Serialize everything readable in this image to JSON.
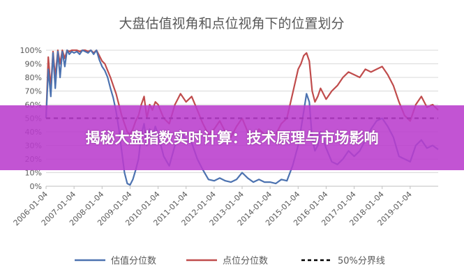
{
  "banner": {
    "headline": "揭秘大盘指数实时计算：技术原理与市场影响"
  },
  "colors": {
    "valuation": "#4c72b0",
    "point": "#c04c4c",
    "threshold": "#000000",
    "banner": "#b93ccd"
  },
  "chart_data": {
    "type": "line",
    "title": "大盘估值视角和点位视角下的位置划分",
    "ylim": [
      0,
      1
    ],
    "yticks": [
      "0%",
      "10%",
      "20%",
      "30%",
      "40%",
      "50%",
      "60%",
      "70%",
      "80%",
      "90%",
      "100%"
    ],
    "xticks": [
      "2006-01-04",
      "2007-01-04",
      "2008-01-04",
      "2009-01-04",
      "2010-01-04",
      "2011-01-04",
      "2012-01-04",
      "2013-01-04",
      "2014-01-04",
      "2015-01-04",
      "2016-01-04",
      "2017-01-04",
      "2018-01-04",
      "2019-01-04"
    ],
    "x_range": [
      2006.0,
      2020.0
    ],
    "grid": true,
    "legend_position": "bottom",
    "series": [
      {
        "name": "估值分位数",
        "x": [
          2006.0,
          2006.08,
          2006.17,
          2006.25,
          2006.33,
          2006.42,
          2006.5,
          2006.58,
          2006.67,
          2006.75,
          2006.83,
          2006.92,
          2007.0,
          2007.1,
          2007.2,
          2007.3,
          2007.4,
          2007.5,
          2007.6,
          2007.7,
          2007.8,
          2007.9,
          2008.0,
          2008.1,
          2008.2,
          2008.3,
          2008.4,
          2008.5,
          2008.6,
          2008.7,
          2008.8,
          2008.9,
          2009.0,
          2009.1,
          2009.2,
          2009.3,
          2009.4,
          2009.5,
          2009.6,
          2009.7,
          2009.8,
          2009.9,
          2010.0,
          2010.2,
          2010.4,
          2010.6,
          2010.8,
          2011.0,
          2011.2,
          2011.4,
          2011.6,
          2011.8,
          2012.0,
          2012.2,
          2012.4,
          2012.6,
          2012.8,
          2013.0,
          2013.2,
          2013.4,
          2013.6,
          2013.8,
          2014.0,
          2014.2,
          2014.4,
          2014.6,
          2014.8,
          2015.0,
          2015.1,
          2015.2,
          2015.3,
          2015.4,
          2015.5,
          2015.6,
          2015.7,
          2015.8,
          2015.9,
          2016.0,
          2016.2,
          2016.4,
          2016.6,
          2016.8,
          2017.0,
          2017.2,
          2017.4,
          2017.6,
          2017.8,
          2018.0,
          2018.2,
          2018.4,
          2018.6,
          2018.8,
          2019.0,
          2019.2,
          2019.4,
          2019.6,
          2019.8,
          2020.0
        ],
        "y": [
          0.5,
          0.86,
          0.66,
          0.98,
          0.72,
          0.99,
          0.8,
          0.99,
          0.88,
          1.0,
          0.97,
          0.99,
          0.98,
          0.99,
          0.97,
          1.0,
          0.99,
          0.98,
          1.0,
          0.97,
          1.0,
          0.93,
          0.88,
          0.85,
          0.8,
          0.72,
          0.65,
          0.55,
          0.42,
          0.26,
          0.1,
          0.02,
          0.01,
          0.05,
          0.12,
          0.2,
          0.38,
          0.46,
          0.3,
          0.42,
          0.36,
          0.44,
          0.38,
          0.22,
          0.15,
          0.3,
          0.4,
          0.34,
          0.32,
          0.2,
          0.12,
          0.05,
          0.04,
          0.06,
          0.04,
          0.03,
          0.05,
          0.1,
          0.06,
          0.03,
          0.05,
          0.03,
          0.03,
          0.02,
          0.05,
          0.04,
          0.15,
          0.3,
          0.42,
          0.55,
          0.68,
          0.62,
          0.35,
          0.26,
          0.3,
          0.4,
          0.34,
          0.28,
          0.18,
          0.16,
          0.2,
          0.26,
          0.22,
          0.26,
          0.34,
          0.42,
          0.48,
          0.5,
          0.44,
          0.36,
          0.22,
          0.2,
          0.18,
          0.3,
          0.34,
          0.28,
          0.3,
          0.27
        ]
      },
      {
        "name": "点位分位数",
        "x": [
          2006.0,
          2006.08,
          2006.17,
          2006.25,
          2006.33,
          2006.42,
          2006.5,
          2006.58,
          2006.67,
          2006.75,
          2006.83,
          2006.92,
          2007.0,
          2007.1,
          2007.2,
          2007.3,
          2007.4,
          2007.5,
          2007.6,
          2007.7,
          2007.8,
          2007.9,
          2008.0,
          2008.1,
          2008.2,
          2008.3,
          2008.4,
          2008.5,
          2008.6,
          2008.7,
          2008.8,
          2008.9,
          2009.0,
          2009.1,
          2009.2,
          2009.3,
          2009.4,
          2009.5,
          2009.6,
          2009.7,
          2009.8,
          2009.9,
          2010.0,
          2010.2,
          2010.4,
          2010.6,
          2010.8,
          2011.0,
          2011.2,
          2011.4,
          2011.6,
          2011.8,
          2012.0,
          2012.2,
          2012.4,
          2012.6,
          2012.8,
          2013.0,
          2013.2,
          2013.4,
          2013.6,
          2013.8,
          2014.0,
          2014.2,
          2014.4,
          2014.6,
          2014.8,
          2015.0,
          2015.1,
          2015.2,
          2015.3,
          2015.4,
          2015.5,
          2015.6,
          2015.7,
          2015.8,
          2015.9,
          2016.0,
          2016.2,
          2016.4,
          2016.6,
          2016.8,
          2017.0,
          2017.2,
          2017.4,
          2017.6,
          2017.8,
          2018.0,
          2018.2,
          2018.4,
          2018.6,
          2018.8,
          2019.0,
          2019.2,
          2019.4,
          2019.6,
          2019.8,
          2020.0
        ],
        "y": [
          0.5,
          0.95,
          0.72,
          0.99,
          0.8,
          1.0,
          0.9,
          1.0,
          0.94,
          1.0,
          0.99,
          1.0,
          1.0,
          1.0,
          0.99,
          1.0,
          1.0,
          0.99,
          1.0,
          0.98,
          1.0,
          0.96,
          0.92,
          0.9,
          0.85,
          0.8,
          0.74,
          0.68,
          0.6,
          0.52,
          0.46,
          0.4,
          0.38,
          0.42,
          0.48,
          0.52,
          0.6,
          0.66,
          0.5,
          0.6,
          0.56,
          0.62,
          0.6,
          0.5,
          0.46,
          0.6,
          0.68,
          0.62,
          0.66,
          0.56,
          0.46,
          0.38,
          0.42,
          0.48,
          0.4,
          0.36,
          0.44,
          0.5,
          0.4,
          0.36,
          0.42,
          0.38,
          0.4,
          0.38,
          0.46,
          0.5,
          0.68,
          0.86,
          0.9,
          0.96,
          0.98,
          0.92,
          0.7,
          0.62,
          0.66,
          0.72,
          0.68,
          0.64,
          0.7,
          0.74,
          0.8,
          0.84,
          0.82,
          0.8,
          0.86,
          0.84,
          0.86,
          0.88,
          0.82,
          0.74,
          0.62,
          0.52,
          0.48,
          0.6,
          0.66,
          0.58,
          0.6,
          0.56
        ]
      },
      {
        "name": "50%分界线",
        "x": [
          2006.0,
          2020.0
        ],
        "y": [
          0.5,
          0.5
        ]
      }
    ]
  }
}
